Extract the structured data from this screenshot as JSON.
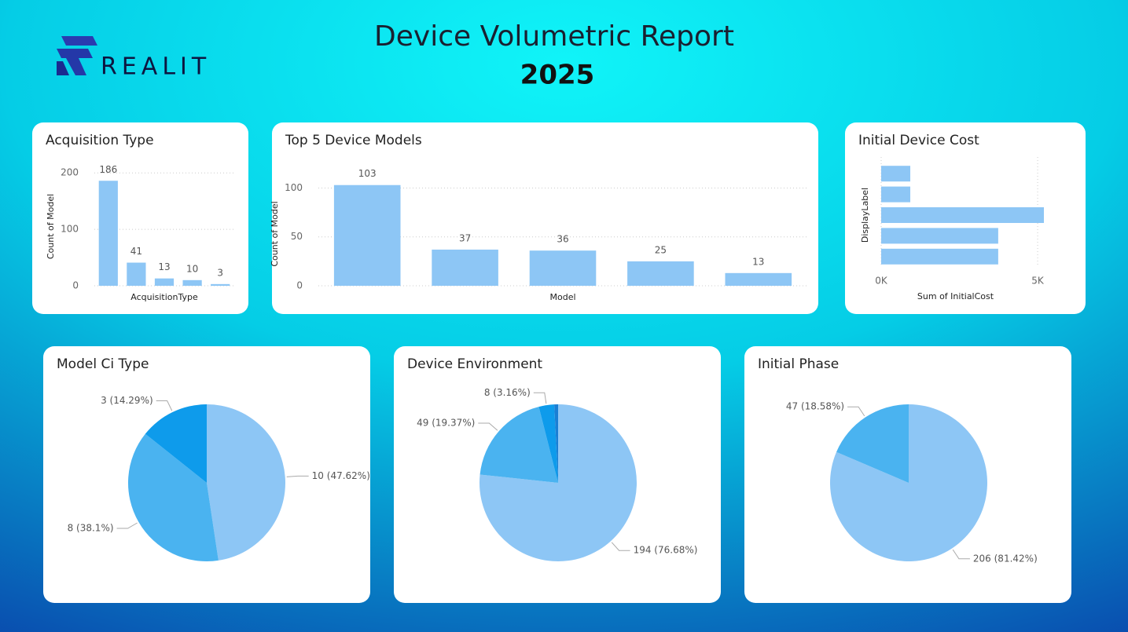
{
  "header": {
    "title": "Device Volumetric Report",
    "year": "2025",
    "logo": "REALIT"
  },
  "chart_data": [
    {
      "type": "bar",
      "title": "Acquisition Type",
      "x_label": "AcquisitionType",
      "y_label": "Count of Model",
      "categories": [
        null,
        null,
        null,
        null,
        null
      ],
      "values": [
        186,
        41,
        13,
        10,
        3
      ],
      "color": "#8dc6f5",
      "ylim": [
        0,
        210
      ],
      "yticks": [
        0,
        100,
        200
      ],
      "grid": true
    },
    {
      "type": "bar",
      "title": "Top 5 Device Models",
      "x_label": "Model",
      "y_label": "Count of Model",
      "categories": [
        null,
        null,
        null,
        null,
        null
      ],
      "values": [
        103,
        37,
        36,
        25,
        13
      ],
      "color": "#8dc6f5",
      "ylim": [
        0,
        106
      ],
      "yticks": [
        0,
        50,
        100
      ],
      "grid": true
    },
    {
      "type": "bar",
      "horizontal": true,
      "title": "Initial Device Cost",
      "x_label": "Sum of InitialCost",
      "y_label": "DisplayLabel",
      "categories": [
        null,
        null,
        null,
        null,
        null
      ],
      "values": [
        930,
        930,
        5200,
        3740,
        3740
      ],
      "color": "#8dc6f5",
      "xlim": [
        0,
        5250
      ],
      "xticks": [
        {
          "value": 0,
          "label": "0K"
        },
        {
          "value": 5000,
          "label": "5K"
        }
      ],
      "grid": true
    },
    {
      "type": "pie",
      "title": "Model Ci Type",
      "categories": [
        null,
        null,
        null
      ],
      "values": [
        10,
        8,
        3
      ],
      "value_labels": [
        "10 (47.62%)",
        "8 (38.1%)",
        "3 (14.29%)"
      ],
      "colors": [
        "#8dc6f5",
        "#4ab3f0",
        "#0e9beb"
      ]
    },
    {
      "type": "pie",
      "title": "Device Environment",
      "categories": [
        null,
        null,
        null,
        null
      ],
      "values": [
        194,
        49,
        8,
        2
      ],
      "value_labels": [
        "194 (76.68%)",
        "49 (19.37%)",
        "8 (3.16%)",
        null
      ],
      "colors": [
        "#8dc6f5",
        "#4ab3f0",
        "#0e9beb",
        "#1a7fd4"
      ]
    },
    {
      "type": "pie",
      "title": "Initial Phase",
      "categories": [
        null,
        null
      ],
      "values": [
        206,
        47
      ],
      "value_labels": [
        "206 (81.42%)",
        "47 (18.58%)"
      ],
      "colors": [
        "#8dc6f5",
        "#4ab3f0"
      ]
    }
  ]
}
